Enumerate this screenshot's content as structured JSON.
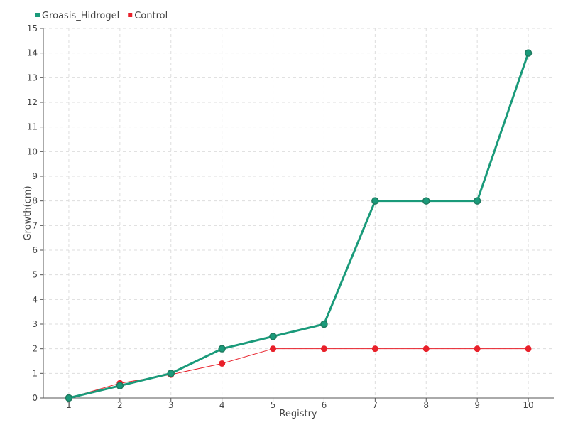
{
  "chart_data": {
    "type": "line",
    "title": "",
    "xlabel": "Registry",
    "ylabel": "Growth(cm)",
    "x": [
      1,
      2,
      3,
      4,
      5,
      6,
      7,
      8,
      9,
      10
    ],
    "xlim": [
      0.5,
      10.5
    ],
    "ylim": [
      0,
      15
    ],
    "yticks": [
      0,
      1,
      2,
      3,
      4,
      5,
      6,
      7,
      8,
      9,
      10,
      11,
      12,
      13,
      14,
      15
    ],
    "grid": true,
    "legend_position": "top-left",
    "series": [
      {
        "name": "Groasis_Hidrogel",
        "color": "#1a9a7a",
        "marker_color": "#1f7a5f",
        "values": [
          0,
          0.5,
          1,
          2,
          2.5,
          3,
          8,
          8,
          8,
          14
        ]
      },
      {
        "name": "Control",
        "color": "#e8202a",
        "marker_color": "#e8202a",
        "values": [
          0,
          0.6,
          0.95,
          1.4,
          2,
          2,
          2,
          2,
          2,
          2
        ]
      }
    ]
  }
}
